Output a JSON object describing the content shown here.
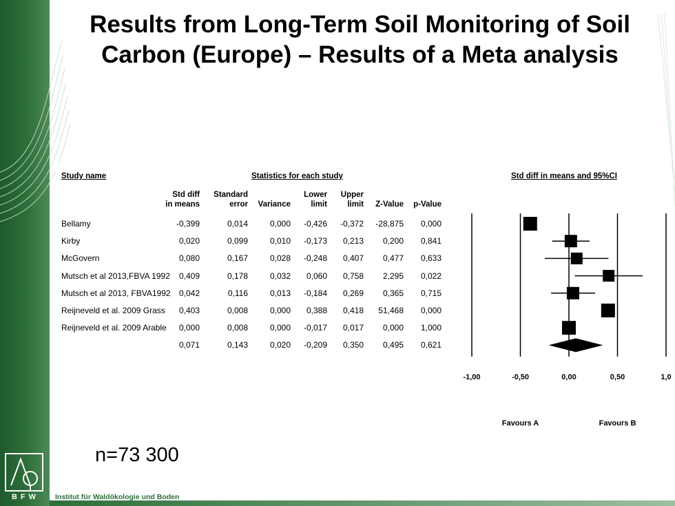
{
  "title": "Results from Long-Term Soil Monitoring of Soil Carbon (Europe) – Results of a Meta analysis",
  "note": "n=73 300",
  "institute": "Institut für Waldökologie und Boden",
  "logo_text": "BFW",
  "colors": {
    "brand_green": "#2d6f39",
    "marker": "#000000"
  },
  "table": {
    "study_header": "Study name",
    "stats_header": "Statistics for each study",
    "plot_header": "Std diff in means and 95%CI",
    "columns": [
      [
        "Std diff",
        "in means"
      ],
      [
        "Standard",
        "error"
      ],
      [
        "",
        "Variance"
      ],
      [
        "Lower",
        "limit"
      ],
      [
        "Upper",
        "limit"
      ],
      [
        "",
        "Z-Value"
      ],
      [
        "",
        "p-Value"
      ]
    ],
    "rows": [
      {
        "name": "Bellamy",
        "values": [
          "-0,399",
          "0,014",
          "0,000",
          "-0,426",
          "-0,372",
          "-28,875",
          "0,000"
        ]
      },
      {
        "name": "Kirby",
        "values": [
          "0,020",
          "0,099",
          "0,010",
          "-0,173",
          "0,213",
          "0,200",
          "0,841"
        ]
      },
      {
        "name": "McGovern",
        "values": [
          "0,080",
          "0,167",
          "0,028",
          "-0,248",
          "0,407",
          "0,477",
          "0,633"
        ]
      },
      {
        "name": "Mutsch et al 2013,FBVA 1992",
        "values": [
          "0,409",
          "0,178",
          "0,032",
          "0,060",
          "0,758",
          "2,295",
          "0,022"
        ]
      },
      {
        "name": "Mutsch et al 2013, FBVA1992",
        "values": [
          "0,042",
          "0,116",
          "0,013",
          "-0,184",
          "0,269",
          "0,365",
          "0,715"
        ]
      },
      {
        "name": "Reijneveld et al. 2009 Grass",
        "values": [
          "0,403",
          "0,008",
          "0,000",
          "0,388",
          "0,418",
          "51,468",
          "0,000"
        ]
      },
      {
        "name": "Reijneveld et al. 2009 Arable",
        "values": [
          "0,000",
          "0,008",
          "0,000",
          "-0,017",
          "0,017",
          "0,000",
          "1,000"
        ]
      }
    ],
    "summary": {
      "name": "",
      "values": [
        "0,071",
        "0,143",
        "0,020",
        "-0,209",
        "0,350",
        "0,495",
        "0,621"
      ]
    }
  },
  "chart_data": {
    "type": "scatter",
    "subtype": "forest-plot",
    "x_ticks": [
      "-1,00",
      "-0,50",
      "0,00",
      "0,50",
      "1,0"
    ],
    "xlim": [
      -1,
      1
    ],
    "reference_lines": [
      -1,
      -0.5,
      0,
      0.5,
      1
    ],
    "favours": [
      "Favours A",
      "Favours B"
    ],
    "studies": [
      {
        "name": "Bellamy",
        "estimate": -0.399,
        "lower": -0.426,
        "upper": -0.372
      },
      {
        "name": "Kirby",
        "estimate": 0.02,
        "lower": -0.173,
        "upper": 0.213
      },
      {
        "name": "McGovern",
        "estimate": 0.08,
        "lower": -0.248,
        "upper": 0.407
      },
      {
        "name": "Mutsch et al 2013,FBVA 1992",
        "estimate": 0.409,
        "lower": 0.06,
        "upper": 0.758
      },
      {
        "name": "Mutsch et al 2013, FBVA1992",
        "estimate": 0.042,
        "lower": -0.184,
        "upper": 0.269
      },
      {
        "name": "Reijneveld et al. 2009 Grass",
        "estimate": 0.403,
        "lower": 0.388,
        "upper": 0.418
      },
      {
        "name": "Reijneveld et al. 2009 Arable",
        "estimate": 0.0,
        "lower": -0.017,
        "upper": 0.017
      }
    ],
    "summary": {
      "estimate": 0.071,
      "lower": -0.209,
      "upper": 0.35
    }
  }
}
